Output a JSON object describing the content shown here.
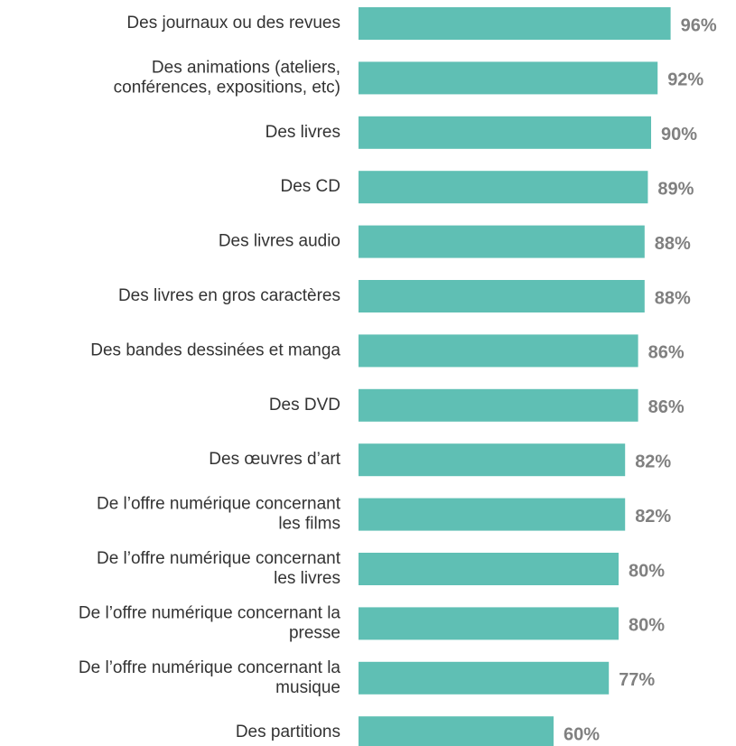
{
  "chart_data": {
    "type": "barh",
    "categories": [
      "Des journaux ou des revues",
      "Des animations (ateliers,\nconférences, expositions, etc)",
      "Des livres",
      "Des CD",
      "Des livres audio",
      "Des livres en gros caractères",
      "Des bandes dessinées et manga",
      "Des DVD",
      "Des œuvres d’art",
      "De l’offre numérique concernant\nles films",
      "De l’offre numérique concernant\nles livres",
      "De l’offre numérique concernant la\npresse",
      "De l’offre numérique concernant la\nmusique",
      "Des partitions"
    ],
    "values": [
      96,
      92,
      90,
      89,
      88,
      88,
      86,
      86,
      82,
      82,
      80,
      80,
      77,
      60
    ],
    "value_labels": [
      "96%",
      "92%",
      "90%",
      "89%",
      "88%",
      "88%",
      "86%",
      "86%",
      "82%",
      "82%",
      "80%",
      "80%",
      "77%",
      "60%"
    ],
    "color": "#5fbfb4",
    "xlim": [
      0,
      100
    ]
  }
}
